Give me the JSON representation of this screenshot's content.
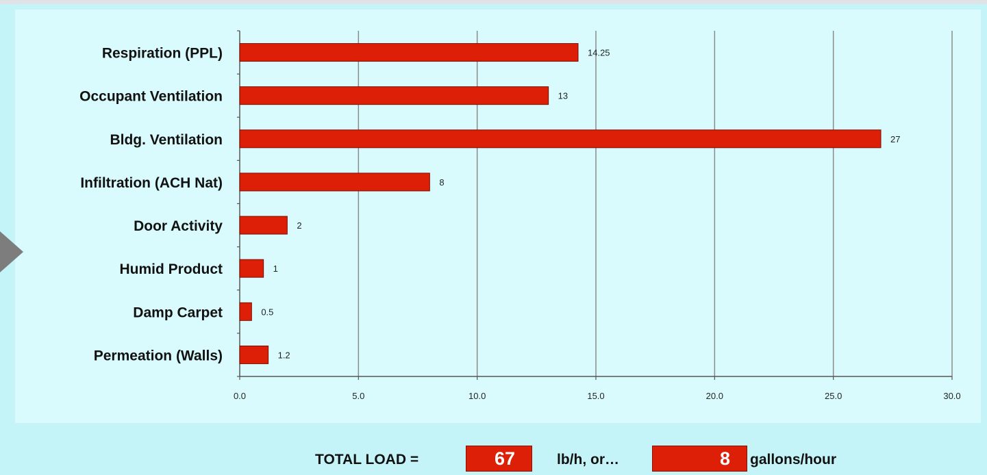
{
  "chart_data": {
    "type": "bar",
    "orientation": "horizontal",
    "categories": [
      "Respiration (PPL)",
      "Occupant Ventilation",
      "Bldg. Ventilation",
      "Infiltration (ACH Nat)",
      "Door Activity",
      "Humid Product",
      "Damp Carpet",
      "Permeation (Walls)"
    ],
    "values": [
      14.25,
      13,
      27,
      8,
      2,
      1,
      0.5,
      1.2
    ],
    "value_labels": [
      "14.25",
      "13",
      "27",
      "8",
      "2",
      "1",
      "0.5",
      "1.2"
    ],
    "xlim": [
      0,
      30
    ],
    "xticks": [
      "0.0",
      "5.0",
      "10.0",
      "15.0",
      "20.0",
      "25.0",
      "30.0"
    ],
    "grid": "vertical",
    "bar_color": "#dd1f08",
    "title": "",
    "xlabel": "",
    "ylabel": ""
  },
  "total": {
    "label": "TOTAL LOAD =",
    "load_value": "67",
    "load_unit": "lb/h, or…",
    "gallons_value": "8",
    "gallons_unit": "gallons/hour"
  },
  "colors": {
    "background": "#c4f4f8",
    "bar": "#dd1f08",
    "nav_arrow": "#7d7d7d"
  },
  "icons": {
    "nav": "triangle-right-icon"
  }
}
